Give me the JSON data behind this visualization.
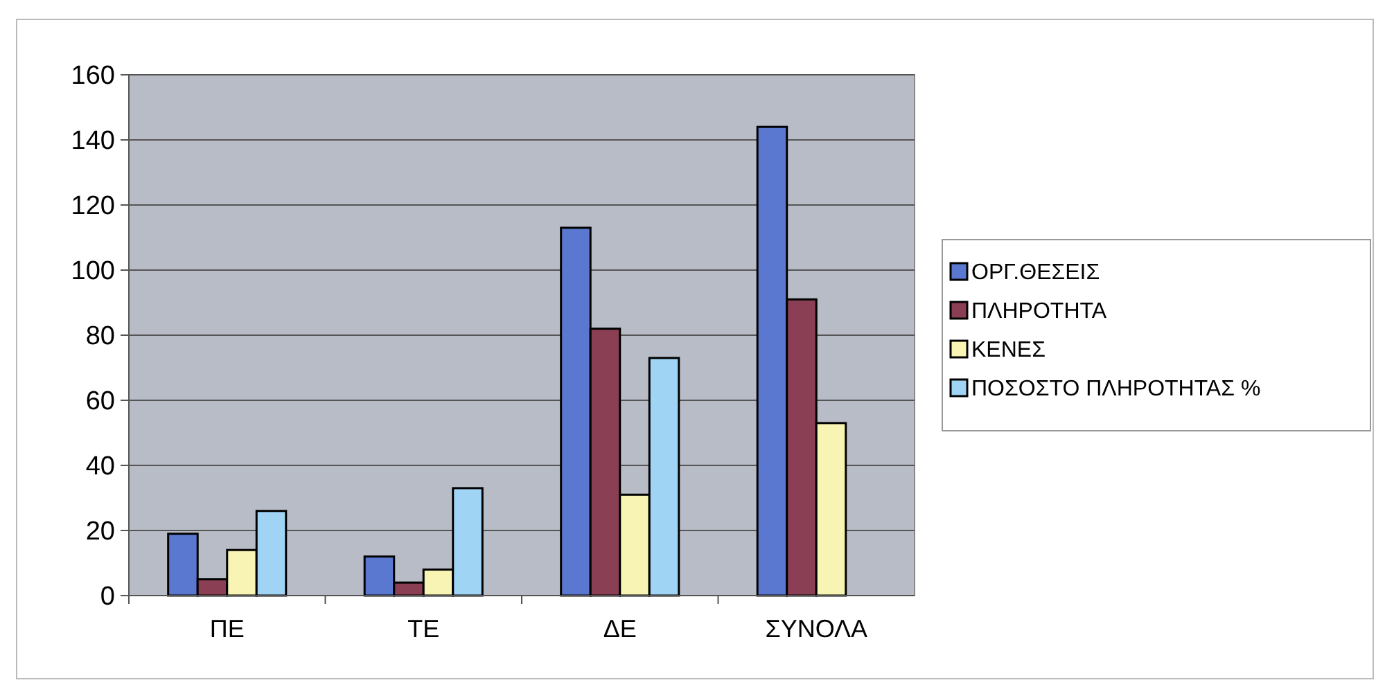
{
  "chart_data": {
    "type": "bar",
    "categories": [
      "ΠΕ",
      "ΤΕ",
      "ΔΕ",
      "ΣΥΝΟΛΑ"
    ],
    "series": [
      {
        "name": "ΟΡΓ.ΘΕΣΕΙΣ",
        "color": "#5b78d0",
        "values": [
          19,
          12,
          113,
          144
        ]
      },
      {
        "name": "ΠΛΗΡΟΤΗΤΑ",
        "color": "#8a3f54",
        "values": [
          5,
          4,
          82,
          91
        ]
      },
      {
        "name": "ΚΕΝΕΣ",
        "color": "#f8f4b4",
        "values": [
          14,
          8,
          31,
          53
        ]
      },
      {
        "name": "ΠΟΣΟΣΤΟ ΠΛΗΡΟΤΗΤΑΣ %",
        "color": "#9fd4f5",
        "values": [
          26,
          33,
          73,
          null
        ]
      }
    ],
    "ylim": [
      0,
      160
    ],
    "yticks": [
      0,
      20,
      40,
      60,
      80,
      100,
      120,
      140,
      160
    ],
    "grid": "y",
    "legend": "right"
  }
}
